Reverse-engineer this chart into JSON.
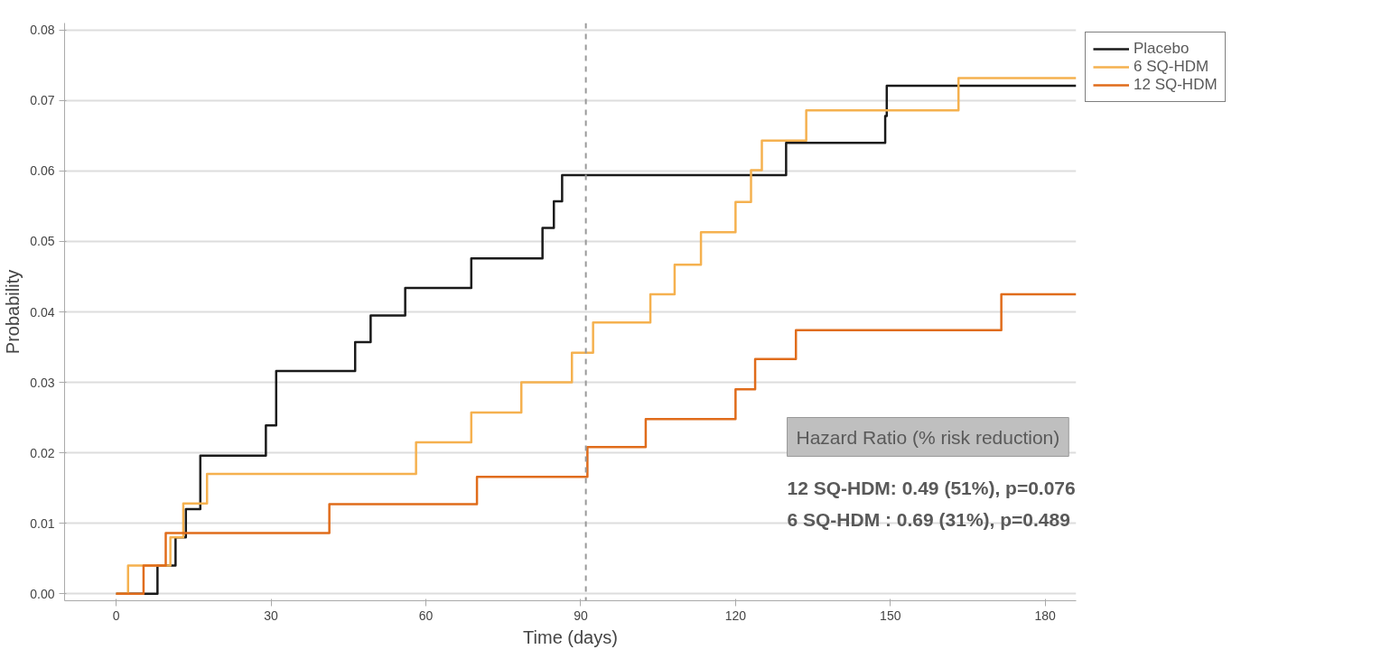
{
  "chart_data": {
    "type": "step",
    "xlabel": "Time (days)",
    "ylabel": "Probability",
    "xlim": [
      -10,
      186
    ],
    "xticks": [
      0,
      30,
      60,
      90,
      120,
      150,
      180
    ],
    "ylim": [
      -0.001,
      0.081
    ],
    "yticks": [
      {
        "value": 0,
        "label": "0.00"
      },
      {
        "value": 0.01,
        "label": "0.01"
      },
      {
        "value": 0.02,
        "label": "0.02"
      },
      {
        "value": 0.03,
        "label": "0.03"
      },
      {
        "value": 0.04,
        "label": "0.04"
      },
      {
        "value": 0.05,
        "label": "0.05"
      },
      {
        "value": 0.06,
        "label": "0.06"
      },
      {
        "value": 0.07,
        "label": "0.07"
      },
      {
        "value": 0.08,
        "label": "0.08"
      }
    ],
    "grid": "y",
    "legend": "top right",
    "line_style": "solid",
    "ref_lines": [
      {
        "axis": "x",
        "value": 91,
        "color": "#999999",
        "line_style": "dashed"
      }
    ],
    "series": [
      {
        "name": "Placebo",
        "color": "#1a1a1a",
        "x": [
          0,
          8,
          11.5,
          13.5,
          16.3,
          29,
          31,
          46.3,
          49.3,
          56,
          68.8,
          82.6,
          84.8,
          86.4,
          129.8,
          149,
          149.3,
          186
        ],
        "values": [
          0,
          0.004,
          0.008,
          0.012,
          0.0196,
          0.0239,
          0.0316,
          0.0357,
          0.0395,
          0.0434,
          0.0476,
          0.0519,
          0.0557,
          0.0594,
          0.064,
          0.0678,
          0.0721,
          0.0721
        ]
      },
      {
        "name": "6 SQ-HDM",
        "color": "#f5b14f",
        "x": [
          0,
          2.3,
          10.5,
          13,
          17.6,
          58.1,
          68.8,
          78.5,
          88.3,
          92.4,
          103.5,
          108.2,
          113.3,
          120,
          123,
          125.1,
          133.7,
          163.2,
          186
        ],
        "values": [
          0,
          0.004,
          0.008,
          0.0128,
          0.017,
          0.0215,
          0.0257,
          0.03,
          0.0342,
          0.0385,
          0.0425,
          0.0467,
          0.0513,
          0.0556,
          0.0601,
          0.0643,
          0.0686,
          0.0732,
          0.0732
        ]
      },
      {
        "name": "12 SQ-HDM",
        "color": "#e06c1b",
        "x": [
          0,
          5.3,
          9.6,
          41.3,
          69.9,
          91.3,
          102.6,
          120,
          123.8,
          131.7,
          171.5,
          186
        ],
        "values": [
          0,
          0.004,
          0.0086,
          0.0127,
          0.0166,
          0.0208,
          0.0248,
          0.029,
          0.0333,
          0.0374,
          0.0425,
          0.0425
        ]
      }
    ],
    "annotations": [
      "Hazard Ratio (% risk reduction)",
      "12 SQ-HDM: 0.49 (51%), p=0.076",
      "6 SQ-HDM  : 0.69 (31%), p=0.489"
    ]
  }
}
